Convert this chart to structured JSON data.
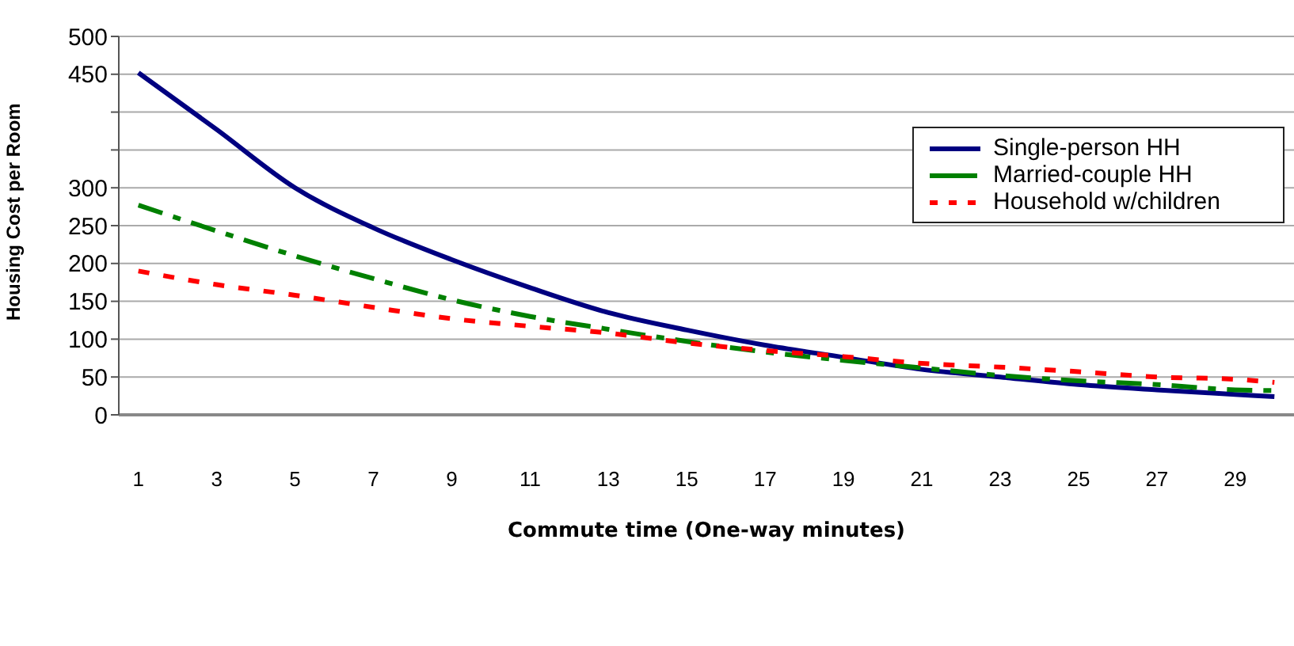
{
  "chart_data": {
    "type": "line",
    "xlabel": "Commute time (One-way minutes)",
    "ylabel": "Housing  Cost  per Room",
    "x": [
      1,
      3,
      5,
      7,
      9,
      11,
      13,
      15,
      17,
      19,
      21,
      23,
      25,
      27,
      29,
      30
    ],
    "series": [
      {
        "name": "Single-person HH",
        "color": "#000080",
        "line_style": "solid",
        "values": [
          452,
          377,
          300,
          247,
          205,
          168,
          135,
          112,
          92,
          76,
          60,
          50,
          40,
          33,
          27,
          24
        ]
      },
      {
        "name": "Married-couple HH",
        "color": "#008000",
        "line_style": "dashed",
        "values": [
          277,
          243,
          210,
          180,
          152,
          130,
          113,
          97,
          83,
          72,
          62,
          52,
          45,
          40,
          33,
          32
        ]
      },
      {
        "name": "Household w/children",
        "color": "#ff0000",
        "line_style": "dotted",
        "values": [
          190,
          172,
          158,
          142,
          127,
          117,
          108,
          95,
          85,
          77,
          68,
          63,
          57,
          50,
          47,
          43
        ]
      }
    ],
    "xlim": [
      0.5,
      30.5
    ],
    "xticks": [
      1,
      3,
      5,
      7,
      9,
      11,
      13,
      15,
      17,
      19,
      21,
      23,
      25,
      27,
      29
    ],
    "ylim": [
      0,
      500
    ],
    "yticks": [
      0,
      50,
      100,
      150,
      200,
      250,
      300,
      {
        "value": 350,
        "label": null
      },
      {
        "value": 400,
        "label": null
      },
      450,
      500
    ],
    "grid": "y",
    "legend": "top right",
    "marker": "none"
  }
}
